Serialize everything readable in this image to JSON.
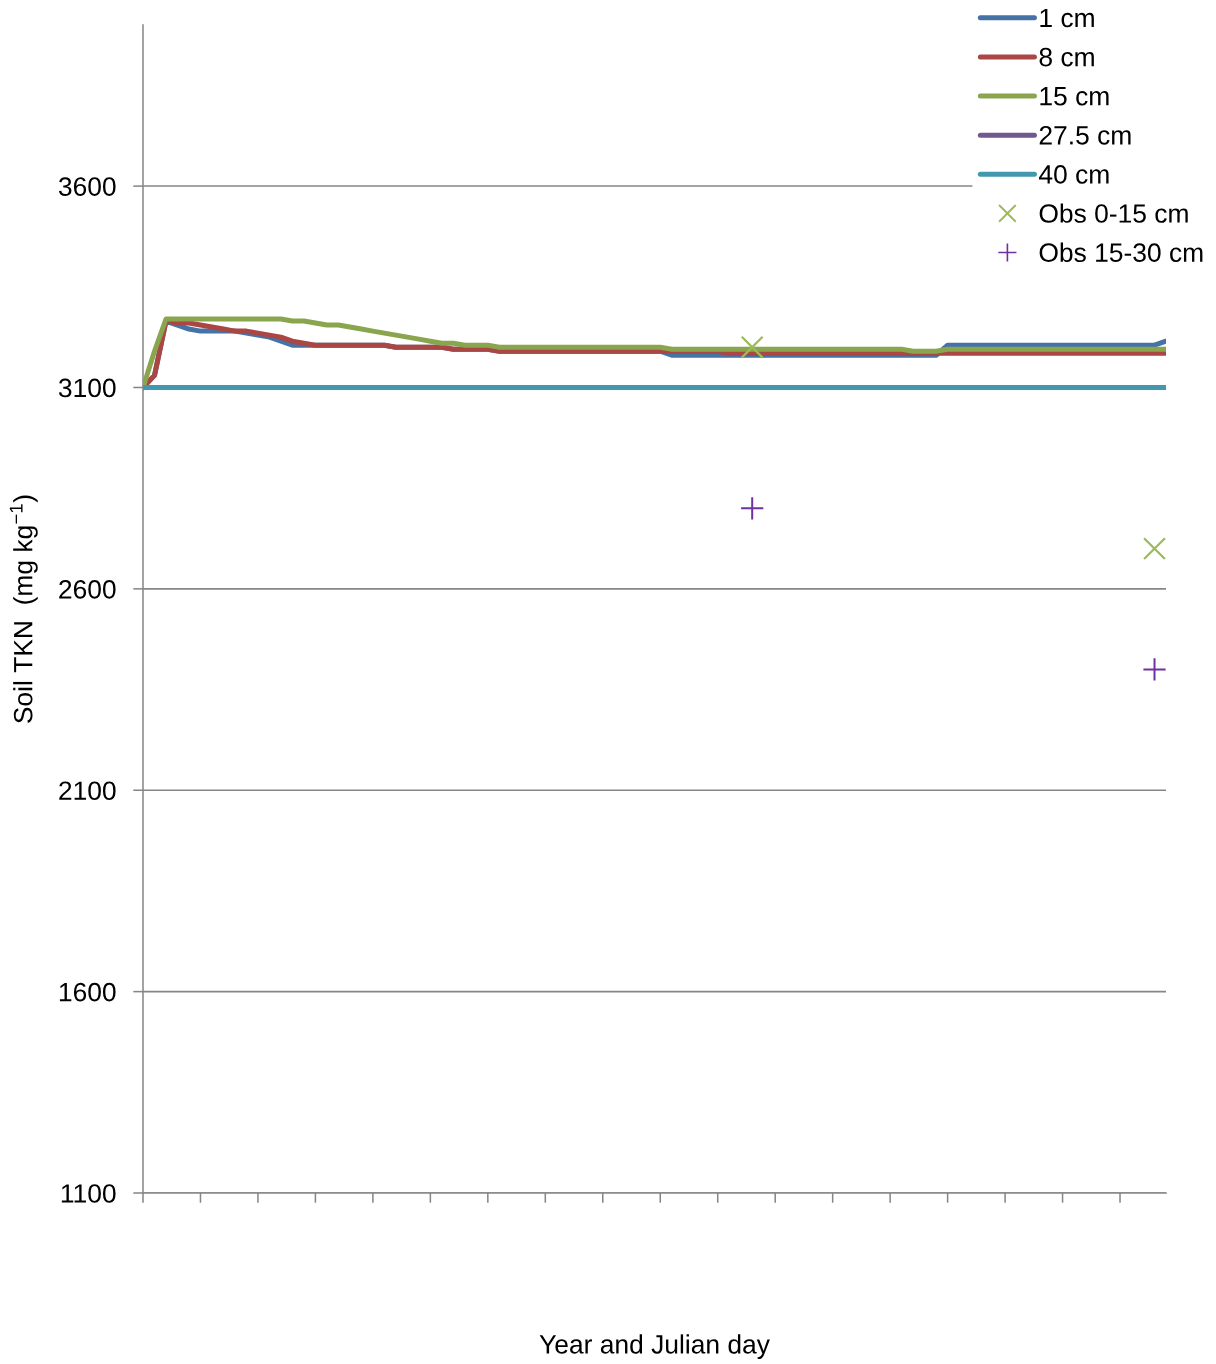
{
  "chart_data": {
    "type": "line",
    "xlabel": "Year and Julian day",
    "ylabel": "Soil TKN  (mg kg$^{−1}$)",
    "categories": [
      null,
      null,
      null,
      null,
      null,
      null,
      null,
      null,
      null,
      null,
      null,
      null,
      null,
      null,
      null,
      null,
      null,
      null,
      null,
      null,
      null,
      null,
      null,
      null,
      null,
      null,
      null,
      null,
      null,
      null,
      null,
      null,
      null,
      null,
      null,
      null,
      null,
      null,
      null,
      null,
      null,
      null,
      null,
      null,
      null,
      null,
      null,
      null,
      null,
      null,
      null,
      null,
      null,
      null,
      null,
      null,
      null,
      null,
      null,
      null,
      null,
      null,
      null,
      null,
      null,
      null,
      null,
      null,
      null,
      null,
      null,
      null,
      null,
      null,
      null,
      null,
      null,
      null,
      null,
      null,
      null,
      null,
      null,
      null,
      null,
      null,
      null,
      null,
      null,
      null
    ],
    "ylim": [
      1100,
      4000
    ],
    "yticks": [
      1100,
      1600,
      2100,
      2600,
      3100,
      3600
    ],
    "grid": "y",
    "legend": "top right",
    "tick_labels": "y",
    "series": [
      {
        "name": "1 cm",
        "color": "#4572a7",
        "values": [
          3100,
          3130,
          3265,
          3255,
          3245,
          3240,
          3240,
          3240,
          3240,
          3235,
          3230,
          3225,
          3215,
          3205,
          3205,
          3205,
          3205,
          3205,
          3205,
          3205,
          3205,
          3205,
          3200,
          3200,
          3200,
          3200,
          3200,
          3195,
          3195,
          3195,
          3195,
          3190,
          3190,
          3190,
          3190,
          3190,
          3190,
          3190,
          3190,
          3190,
          3190,
          3190,
          3190,
          3190,
          3190,
          3190,
          3180,
          3180,
          3180,
          3180,
          3180,
          3180,
          3180,
          3180,
          3180,
          3180,
          3180,
          3180,
          3180,
          3180,
          3180,
          3180,
          3180,
          3180,
          3180,
          3180,
          3180,
          3180,
          3180,
          3180,
          3205,
          3205,
          3205,
          3205,
          3205,
          3205,
          3205,
          3205,
          3205,
          3205,
          3205,
          3205,
          3205,
          3205,
          3205,
          3205,
          3205,
          3205,
          3205,
          3215
        ]
      },
      {
        "name": "8 cm",
        "color": "#aa4643",
        "values": [
          3100,
          3130,
          3265,
          3260,
          3260,
          3255,
          3250,
          3245,
          3240,
          3240,
          3235,
          3230,
          3225,
          3215,
          3210,
          3205,
          3205,
          3205,
          3205,
          3205,
          3205,
          3205,
          3200,
          3200,
          3200,
          3200,
          3200,
          3195,
          3195,
          3195,
          3195,
          3190,
          3190,
          3190,
          3190,
          3190,
          3190,
          3190,
          3190,
          3190,
          3190,
          3190,
          3190,
          3190,
          3190,
          3190,
          3190,
          3190,
          3190,
          3190,
          3190,
          3185,
          3185,
          3185,
          3185,
          3185,
          3185,
          3185,
          3185,
          3185,
          3185,
          3185,
          3185,
          3185,
          3185,
          3185,
          3185,
          3185,
          3185,
          3185,
          3185,
          3185,
          3185,
          3185,
          3185,
          3185,
          3185,
          3185,
          3185,
          3185,
          3185,
          3185,
          3185,
          3185,
          3185,
          3185,
          3185,
          3185,
          3185,
          3185
        ]
      },
      {
        "name": "15 cm",
        "color": "#89a54e",
        "values": [
          3100,
          3190,
          3270,
          3270,
          3270,
          3270,
          3270,
          3270,
          3270,
          3270,
          3270,
          3270,
          3270,
          3265,
          3265,
          3260,
          3255,
          3255,
          3250,
          3245,
          3240,
          3235,
          3230,
          3225,
          3220,
          3215,
          3210,
          3210,
          3205,
          3205,
          3205,
          3200,
          3200,
          3200,
          3200,
          3200,
          3200,
          3200,
          3200,
          3200,
          3200,
          3200,
          3200,
          3200,
          3200,
          3200,
          3195,
          3195,
          3195,
          3195,
          3195,
          3195,
          3195,
          3195,
          3195,
          3195,
          3195,
          3195,
          3195,
          3195,
          3195,
          3195,
          3195,
          3195,
          3195,
          3195,
          3195,
          3190,
          3190,
          3190,
          3195,
          3195,
          3195,
          3195,
          3195,
          3195,
          3195,
          3195,
          3195,
          3195,
          3195,
          3195,
          3195,
          3195,
          3195,
          3195,
          3195,
          3195,
          3195,
          3195
        ]
      },
      {
        "name": "27.5 cm",
        "color": "#71588f",
        "values": [
          null,
          null,
          null,
          null,
          null,
          null,
          null,
          null,
          null,
          null,
          null,
          null,
          null,
          null,
          null,
          null,
          null,
          null,
          null,
          null,
          null,
          null,
          null,
          null,
          null,
          null,
          null,
          null,
          null,
          null,
          null,
          null,
          null,
          null,
          null,
          null,
          null,
          null,
          null,
          null,
          null,
          null,
          null,
          null,
          null,
          null,
          null,
          null,
          null,
          null,
          null,
          null,
          null,
          null,
          null,
          null,
          null,
          null,
          null,
          null,
          null,
          null,
          null,
          null,
          null,
          null,
          null,
          null,
          null,
          null,
          null,
          null,
          null,
          null,
          null,
          null,
          null,
          null,
          null,
          null,
          null,
          null,
          null,
          null,
          null,
          null,
          null,
          null,
          null,
          null
        ]
      },
      {
        "name": "40 cm",
        "color": "#4198af",
        "values": [
          3100,
          3100,
          3100,
          3100,
          3100,
          3100,
          3100,
          3100,
          3100,
          3100,
          3100,
          3100,
          3100,
          3100,
          3100,
          3100,
          3100,
          3100,
          3100,
          3100,
          3100,
          3100,
          3100,
          3100,
          3100,
          3100,
          3100,
          3100,
          3100,
          3100,
          3100,
          3100,
          3100,
          3100,
          3100,
          3100,
          3100,
          3100,
          3100,
          3100,
          3100,
          3100,
          3100,
          3100,
          3100,
          3100,
          3100,
          3100,
          3100,
          3100,
          3100,
          3100,
          3100,
          3100,
          3100,
          3100,
          3100,
          3100,
          3100,
          3100,
          3100,
          3100,
          3100,
          3100,
          3100,
          3100,
          3100,
          3100,
          3100,
          3100,
          3100,
          3100,
          3100,
          3100,
          3100,
          3100,
          3100,
          3100,
          3100,
          3100,
          3100,
          3100,
          3100,
          3100,
          3100,
          3100,
          3100,
          3100,
          3100,
          3100
        ]
      },
      {
        "name": "Obs 0-15 cm",
        "type": "scatter",
        "marker": "x",
        "color": "#9bbb59",
        "values": [
          null,
          null,
          null,
          null,
          null,
          null,
          null,
          null,
          null,
          null,
          null,
          null,
          null,
          null,
          null,
          null,
          null,
          null,
          null,
          null,
          null,
          null,
          null,
          null,
          null,
          null,
          null,
          null,
          null,
          null,
          null,
          null,
          null,
          null,
          null,
          null,
          null,
          null,
          null,
          null,
          null,
          null,
          null,
          null,
          null,
          null,
          null,
          null,
          null,
          null,
          null,
          null,
          null,
          3200,
          null,
          null,
          null,
          null,
          null,
          null,
          null,
          null,
          null,
          null,
          null,
          null,
          null,
          null,
          null,
          null,
          null,
          null,
          null,
          null,
          null,
          null,
          null,
          null,
          null,
          null,
          null,
          null,
          null,
          null,
          null,
          null,
          null,
          null,
          2700,
          null
        ]
      },
      {
        "name": "Obs 15-30 cm",
        "type": "scatter",
        "marker": "cross",
        "color": "#7030a0",
        "values": [
          null,
          null,
          null,
          null,
          null,
          null,
          null,
          null,
          null,
          null,
          null,
          null,
          null,
          null,
          null,
          null,
          null,
          null,
          null,
          null,
          null,
          null,
          null,
          null,
          null,
          null,
          null,
          null,
          null,
          null,
          null,
          null,
          null,
          null,
          null,
          null,
          null,
          null,
          null,
          null,
          null,
          null,
          null,
          null,
          null,
          null,
          null,
          null,
          null,
          null,
          null,
          null,
          null,
          2800,
          null,
          null,
          null,
          null,
          null,
          null,
          null,
          null,
          null,
          null,
          null,
          null,
          null,
          null,
          null,
          null,
          null,
          null,
          null,
          null,
          null,
          null,
          null,
          null,
          null,
          null,
          null,
          null,
          null,
          null,
          null,
          null,
          null,
          null,
          2400,
          null
        ]
      }
    ]
  }
}
